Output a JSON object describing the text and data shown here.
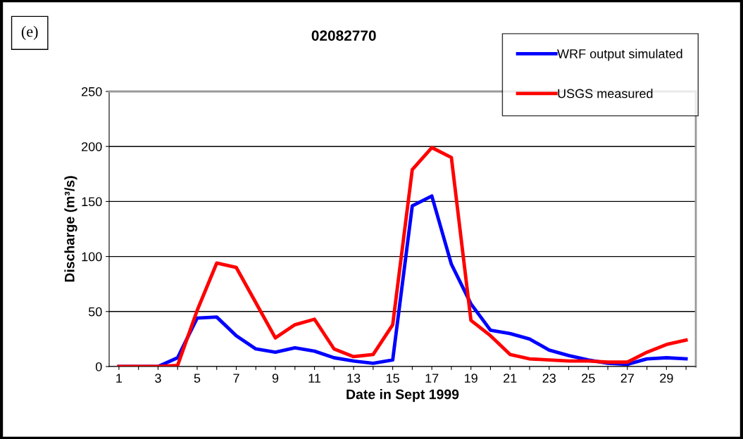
{
  "chart_data": {
    "type": "line",
    "title": "02082770",
    "xlabel": "Date in Sept 1999",
    "ylabel": "Discharge (m³/s)",
    "annotations": [
      "(e)"
    ],
    "categories": [
      "1",
      null,
      "3",
      null,
      "5",
      null,
      "7",
      null,
      "9",
      null,
      "11",
      null,
      "13",
      null,
      "15",
      null,
      "17",
      null,
      "19",
      null,
      "21",
      null,
      "23",
      null,
      "25",
      null,
      "27",
      null,
      "29",
      null
    ],
    "series": [
      {
        "name": "WRF output simulated",
        "color": "#0000ff",
        "values": [
          0,
          0,
          0,
          8,
          44,
          45,
          28,
          16,
          13,
          17,
          14,
          8,
          5,
          3,
          6,
          146,
          155,
          93,
          57,
          33,
          30,
          25,
          15,
          10,
          6,
          3,
          2,
          7,
          8,
          7
        ]
      },
      {
        "name": "USGS measured",
        "color": "#ff0000",
        "values": [
          0,
          0,
          0,
          1,
          51,
          94,
          90,
          58,
          26,
          38,
          43,
          16,
          9,
          11,
          38,
          179,
          199,
          190,
          42,
          28,
          11,
          7,
          6,
          5,
          5,
          4,
          4,
          13,
          20,
          24
        ]
      }
    ],
    "ylim": [
      0,
      250
    ],
    "yticks": [
      0,
      50,
      100,
      150,
      200,
      250
    ],
    "grid": "y",
    "legend": "top right",
    "marker": "none",
    "line_style": "solid"
  }
}
